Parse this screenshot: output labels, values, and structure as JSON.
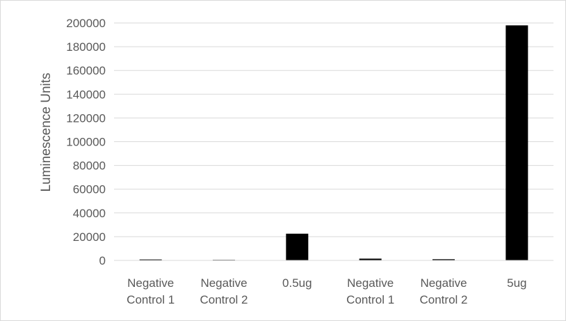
{
  "chart_data": {
    "type": "bar",
    "title": "",
    "xlabel": "",
    "ylabel": "Luminescence Units",
    "categories": [
      [
        "Negative",
        "Control 1"
      ],
      [
        "Negative",
        "Control 2"
      ],
      [
        "0.5ug"
      ],
      [
        "Negative",
        "Control 1"
      ],
      [
        "Negative",
        "Control 2"
      ],
      [
        "5ug"
      ]
    ],
    "values": [
      800,
      500,
      22500,
      1500,
      1000,
      198000
    ],
    "ylim": [
      0,
      200000
    ],
    "yticks": [
      0,
      20000,
      40000,
      60000,
      80000,
      100000,
      120000,
      140000,
      160000,
      180000,
      200000
    ],
    "grid": true,
    "legend": "none",
    "colors": {
      "bar_fill": "#000000",
      "gridline": "#d9d9d9",
      "axis_line": "#d9d9d9",
      "text": "#595959"
    }
  }
}
